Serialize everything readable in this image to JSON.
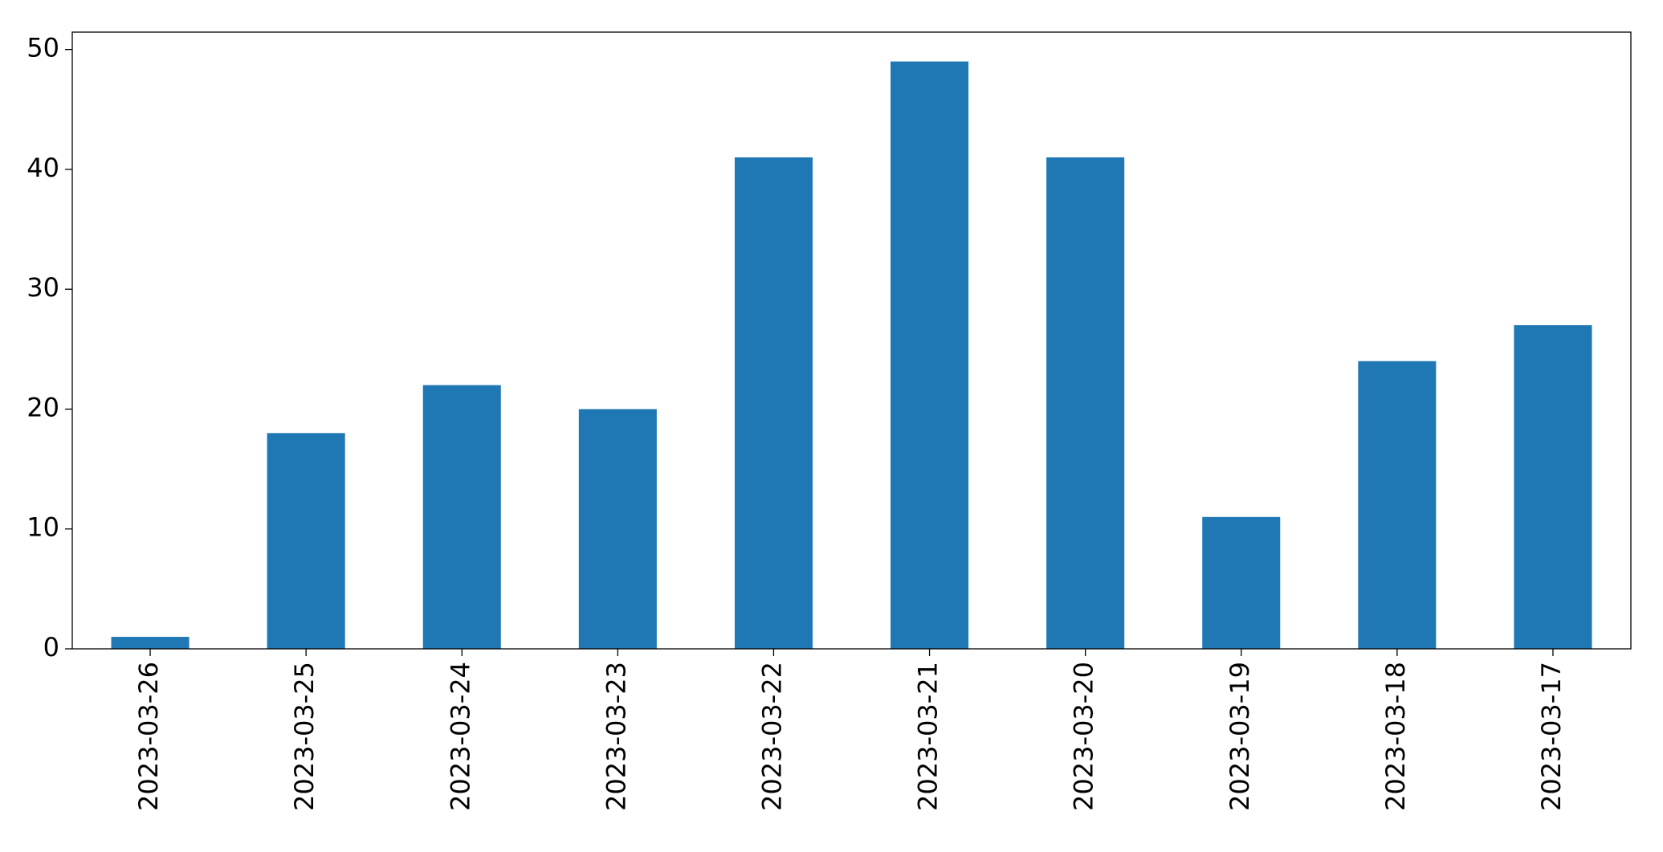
{
  "chart_data": {
    "type": "bar",
    "categories": [
      "2023-03-26",
      "2023-03-25",
      "2023-03-24",
      "2023-03-23",
      "2023-03-22",
      "2023-03-21",
      "2023-03-20",
      "2023-03-19",
      "2023-03-18",
      "2023-03-17"
    ],
    "values": [
      1,
      18,
      22,
      20,
      41,
      49,
      41,
      11,
      24,
      27
    ],
    "color": "#1f77b4",
    "ylim": [
      0,
      51.45
    ],
    "yticks": [
      0,
      10,
      20,
      30,
      40,
      50
    ],
    "grid": false
  }
}
